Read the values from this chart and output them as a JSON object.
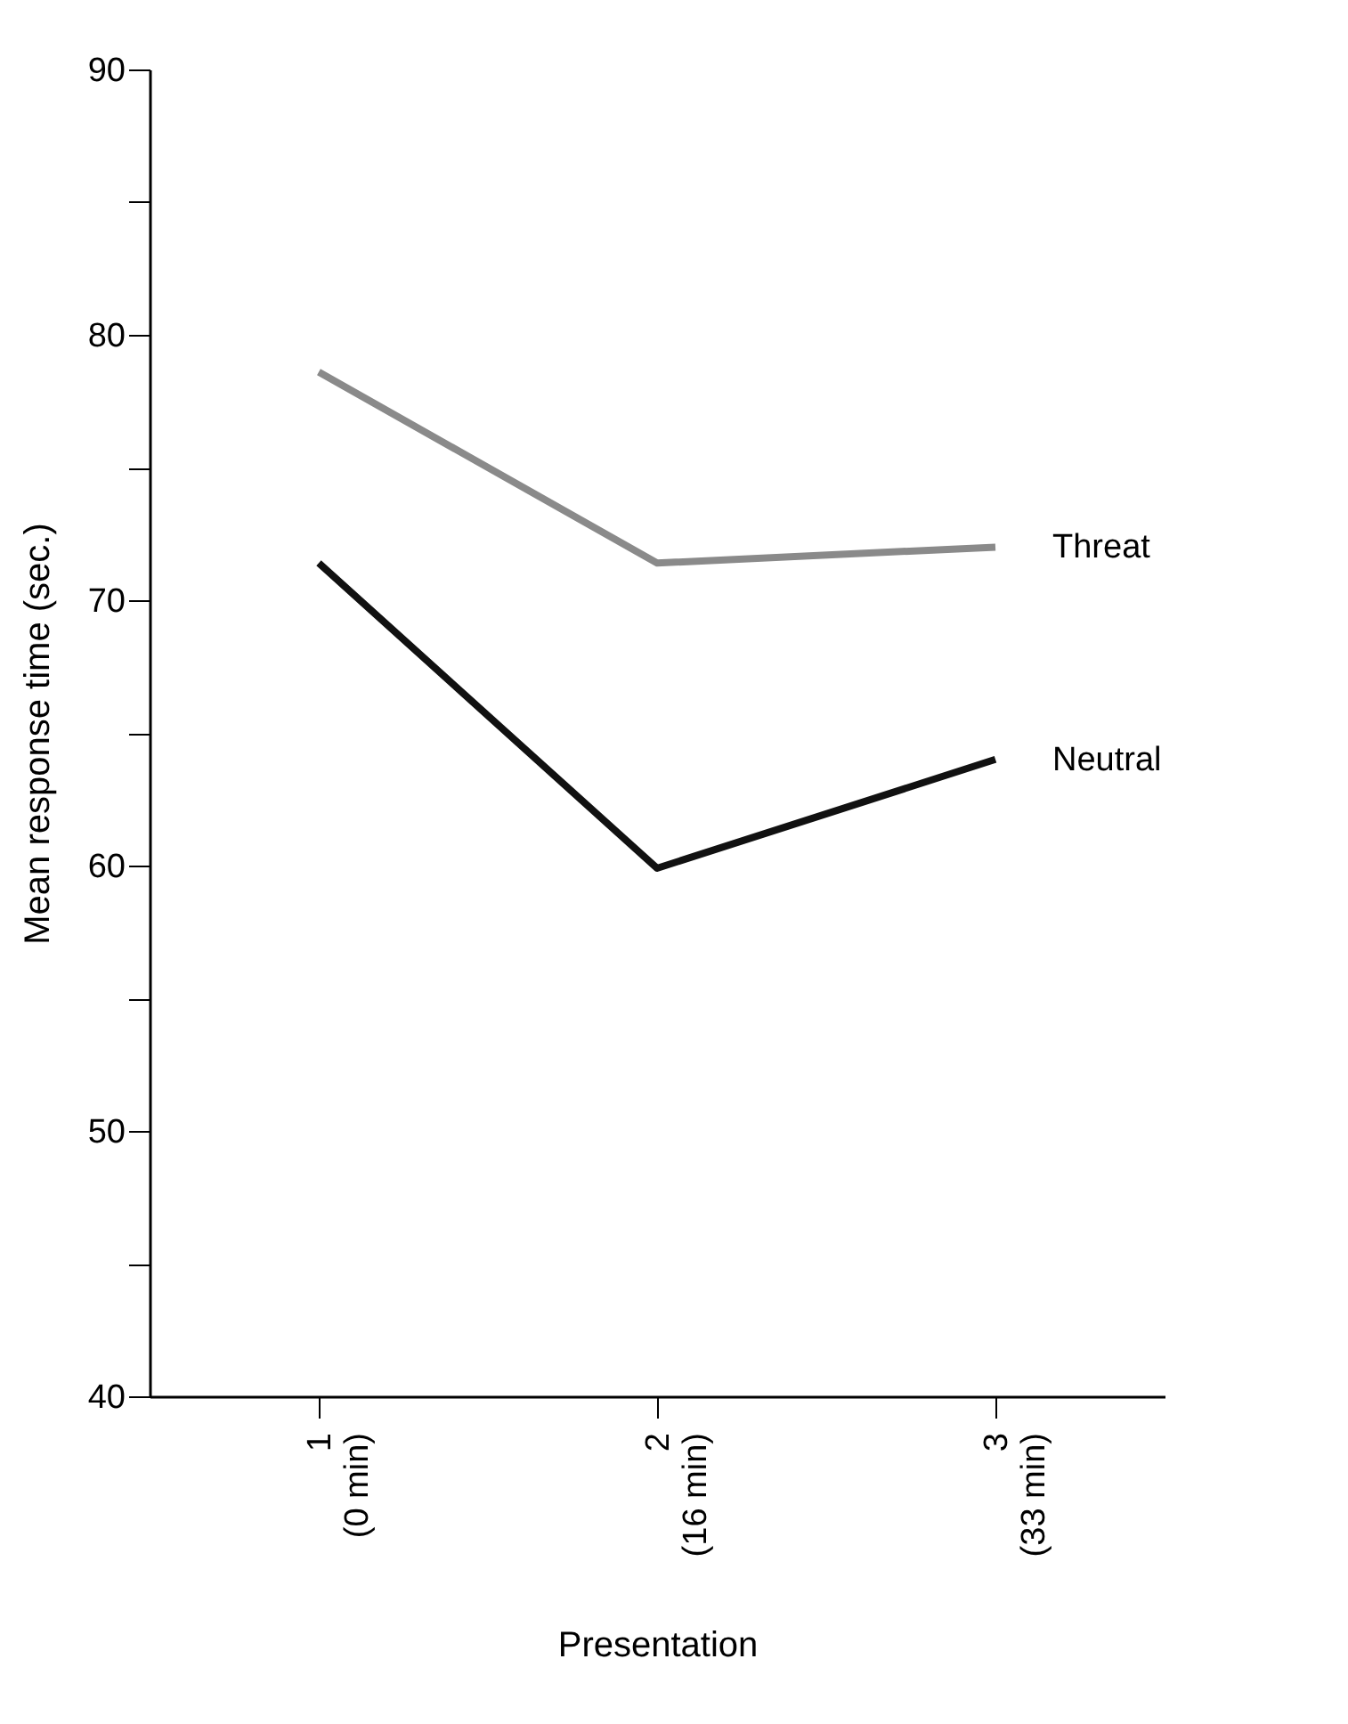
{
  "chart_data": {
    "type": "line",
    "xlabel": "Presentation",
    "ylabel": "Mean response time  (sec.)",
    "categories": [
      "1\n(0 min)",
      "2\n(16 min)",
      "3\n(33 min)"
    ],
    "series": [
      {
        "name": "Threat",
        "color": "#8a8a8a",
        "values": [
          78.6,
          71.4,
          72.0
        ]
      },
      {
        "name": "Neutral",
        "color": "#111111",
        "values": [
          71.4,
          59.9,
          64.0
        ]
      }
    ],
    "ylim": [
      40,
      90
    ],
    "yticks": [
      40,
      {
        "value": 45,
        "label": null
      },
      50,
      {
        "value": 55,
        "label": null
      },
      60,
      {
        "value": 65,
        "label": null
      },
      70,
      {
        "value": 75,
        "label": null
      },
      80,
      {
        "value": 85,
        "label": null
      },
      90
    ],
    "grid": false,
    "legend": false,
    "marker": "none",
    "line_style": "solid"
  }
}
